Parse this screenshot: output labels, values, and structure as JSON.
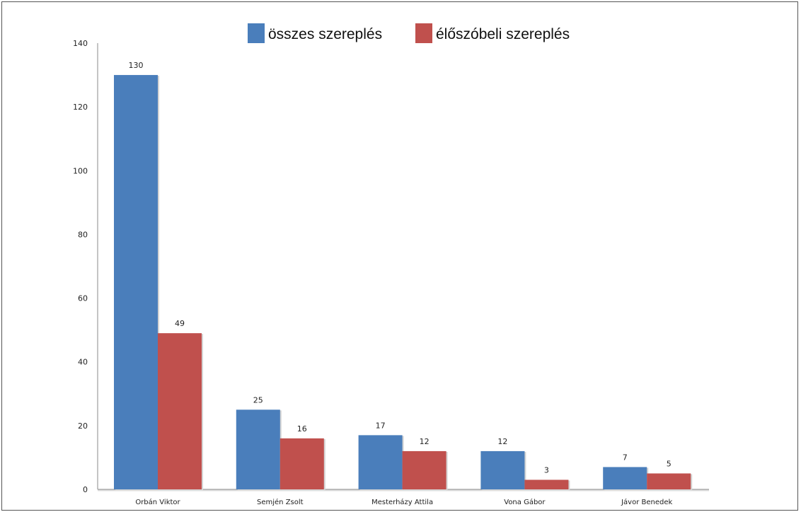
{
  "chart_data": {
    "type": "bar",
    "categories": [
      "Orbán Viktor",
      "Semjén Zsolt",
      "Mesterházy Attila",
      "Vona Gábor",
      "Jávor Benedek"
    ],
    "series": [
      {
        "name": "összes szereplés",
        "values": [
          130,
          25,
          17,
          12,
          7
        ],
        "color": "#4a7ebb"
      },
      {
        "name": "élőszóbeli szereplés",
        "values": [
          49,
          16,
          12,
          3,
          5
        ],
        "color": "#c0504d"
      }
    ],
    "yticks": [
      0,
      20,
      40,
      60,
      80,
      100,
      120,
      140
    ],
    "ylim": [
      0,
      140
    ],
    "title": "",
    "xlabel": "",
    "ylabel": "",
    "grid": false,
    "legend_position": "top-center",
    "data_labels": true
  }
}
